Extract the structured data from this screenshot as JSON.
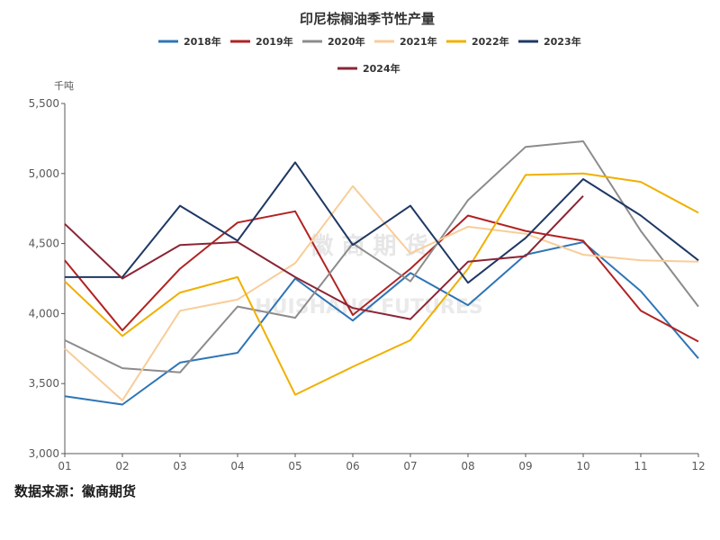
{
  "chart_data": {
    "type": "line",
    "title": "印尼棕榈油季节性产量",
    "ylabel": "千吨",
    "categories": [
      "01",
      "02",
      "03",
      "04",
      "05",
      "06",
      "07",
      "08",
      "09",
      "10",
      "11",
      "12"
    ],
    "ylim": [
      3000,
      5500
    ],
    "yticks": [
      "3,000",
      "3,500",
      "4,000",
      "4,500",
      "5,000",
      "5,500"
    ],
    "ytick_values": [
      3000,
      3500,
      4000,
      4500,
      5000,
      5500
    ],
    "legend_position": "top",
    "series": [
      {
        "name": "2018年",
        "color": "#2e75b6",
        "values": [
          3410,
          3350,
          3650,
          3720,
          4250,
          3950,
          4290,
          4060,
          4420,
          4510,
          4160,
          3680
        ]
      },
      {
        "name": "2019年",
        "color": "#b22222",
        "values": [
          4380,
          3880,
          4320,
          4650,
          4730,
          3990,
          4320,
          4700,
          4590,
          4520,
          4020,
          3800
        ]
      },
      {
        "name": "2020年",
        "color": "#8c8c8c",
        "values": [
          3810,
          3610,
          3580,
          4050,
          3970,
          4500,
          4230,
          4810,
          5190,
          5230,
          4590,
          4050
        ]
      },
      {
        "name": "2021年",
        "color": "#f8cd99",
        "values": [
          3750,
          3380,
          4020,
          4100,
          4360,
          4910,
          4430,
          4620,
          4570,
          4420,
          4380,
          4370
        ]
      },
      {
        "name": "2022年",
        "color": "#f0b000",
        "values": [
          4230,
          3840,
          4150,
          4260,
          3420,
          3620,
          3810,
          4320,
          4990,
          5000,
          4940,
          4720
        ]
      },
      {
        "name": "2023年",
        "color": "#1f3864",
        "values": [
          4260,
          4260,
          4770,
          4520,
          5080,
          4490,
          4770,
          4220,
          4540,
          4960,
          4700,
          4380
        ]
      },
      {
        "name": "2024年",
        "color": "#8b2535",
        "values": [
          4640,
          4250,
          4490,
          4510,
          4260,
          4040,
          3960,
          4370,
          4410,
          4840,
          null,
          null
        ]
      }
    ]
  },
  "watermark": {
    "cn": "徽 商 期 货",
    "en": "HUISHANG FUTURES"
  },
  "source": "数据来源：徽商期货"
}
